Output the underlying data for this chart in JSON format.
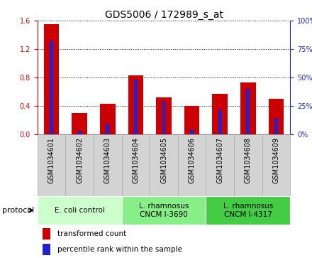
{
  "title": "GDS5006 / 172989_s_at",
  "samples": [
    "GSM1034601",
    "GSM1034602",
    "GSM1034603",
    "GSM1034604",
    "GSM1034605",
    "GSM1034606",
    "GSM1034607",
    "GSM1034608",
    "GSM1034609"
  ],
  "transformed_count": [
    1.55,
    0.3,
    0.43,
    0.83,
    0.52,
    0.4,
    0.57,
    0.73,
    0.5
  ],
  "percentile_rank_pct": [
    82,
    3,
    9,
    48,
    29,
    4,
    21,
    40,
    14
  ],
  "ylim_left": [
    0,
    1.6
  ],
  "ylim_right": [
    0,
    100
  ],
  "yticks_left": [
    0,
    0.4,
    0.8,
    1.2,
    1.6
  ],
  "yticks_right": [
    0,
    25,
    50,
    75,
    100
  ],
  "bar_color_red": "#cc0000",
  "bar_color_blue": "#2222cc",
  "groups": [
    {
      "label": "E. coli control",
      "start": 0,
      "end": 3,
      "color": "#ccffcc"
    },
    {
      "label": "L. rhamnosus\nCNCM I-3690",
      "start": 3,
      "end": 6,
      "color": "#88ee88"
    },
    {
      "label": "L. rhamnosus\nCNCM I-4317",
      "start": 6,
      "end": 9,
      "color": "#44cc44"
    }
  ],
  "protocol_label": "protocol",
  "legend_items": [
    {
      "label": "transformed count",
      "color": "#cc0000"
    },
    {
      "label": "percentile rank within the sample",
      "color": "#2222cc"
    }
  ],
  "red_bar_width": 0.55,
  "blue_bar_width": 0.12,
  "title_fontsize": 10,
  "tick_fontsize": 7,
  "label_fontsize": 8,
  "sample_box_color": "#d3d3d3",
  "sample_box_edge": "#aaaaaa"
}
